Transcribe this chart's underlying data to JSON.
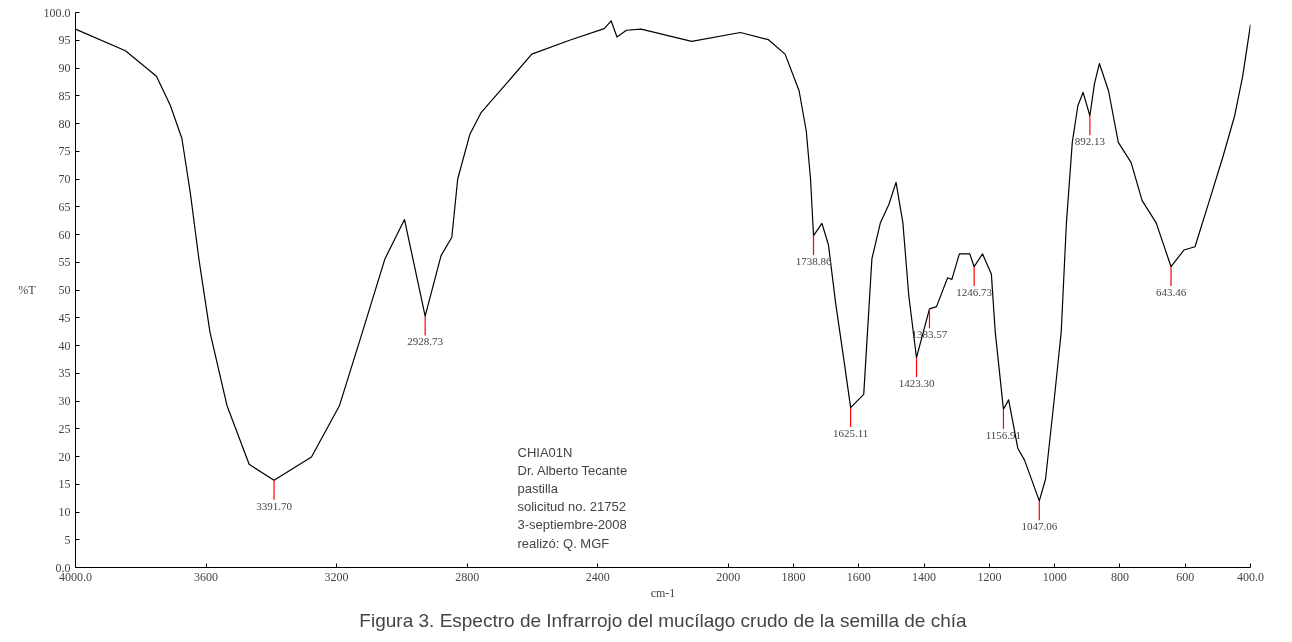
{
  "chart_data": {
    "type": "line",
    "title": "Figura 3. Espectro de Infrarrojo del mucílago crudo de la semilla de chía",
    "xlabel": "cm-1",
    "ylabel": "%T",
    "xlim": [
      4000,
      400
    ],
    "xticks": [
      {
        "value": 4000,
        "label": "4000.0"
      },
      3600,
      3200,
      2800,
      2400,
      2000,
      1800,
      1600,
      1400,
      1200,
      1000,
      800,
      600,
      {
        "value": 400,
        "label": "400.0"
      }
    ],
    "ylim": [
      0,
      100
    ],
    "yticks": [
      {
        "value": 0,
        "label": "0.0"
      },
      5,
      10,
      15,
      20,
      25,
      30,
      35,
      40,
      45,
      50,
      55,
      60,
      65,
      70,
      75,
      80,
      85,
      90,
      95,
      {
        "value": 100,
        "label": "100.0"
      }
    ],
    "grid": false,
    "marker": "none",
    "line_style": "solid",
    "series": [
      {
        "color": "#000000",
        "x": [
          4000,
          3847,
          3752,
          3709,
          3674,
          3648,
          3622,
          3588,
          3536,
          3468,
          3391.7,
          3277,
          3191,
          3121,
          3052,
          2992,
          2928.73,
          2880,
          2847,
          2829,
          2792,
          2758,
          2690,
          2602,
          2482,
          2380,
          2359,
          2341,
          2312,
          2267,
          2112,
          1963,
          1877,
          1826,
          1783,
          1761,
          1748,
          1738.86,
          1713,
          1693,
          1671,
          1645,
          1625.11,
          1585,
          1560,
          1534,
          1508,
          1486,
          1465,
          1447,
          1423.3,
          1383.57,
          1362,
          1328,
          1315,
          1292,
          1276,
          1260,
          1246.73,
          1221,
          1194,
          1182,
          1156.91,
          1141,
          1113,
          1092,
          1047.06,
          1028,
          1001,
          980,
          964,
          946,
          929,
          913,
          892.13,
          878,
          863,
          835,
          805,
          766,
          732,
          689,
          643.46,
          604,
          570,
          526,
          484,
          449,
          424,
          400
        ],
        "values": [
          97.0,
          93.1,
          88.5,
          83.2,
          77.3,
          67.4,
          55.6,
          42.4,
          29.2,
          18.6,
          15.7,
          19.9,
          29.2,
          42.4,
          55.6,
          62.7,
          45.3,
          56.2,
          59.5,
          70.0,
          78.0,
          81.9,
          86.5,
          92.5,
          95.1,
          97.1,
          98.5,
          95.6,
          96.8,
          97.0,
          94.8,
          96.4,
          95.1,
          92.5,
          85.9,
          78.6,
          70.0,
          59.8,
          62.0,
          58.1,
          47.6,
          37.1,
          28.8,
          31.2,
          55.6,
          62.1,
          65.4,
          69.4,
          62.1,
          49.0,
          37.8,
          46.6,
          47.0,
          52.2,
          51.9,
          56.5,
          56.5,
          56.5,
          54.2,
          56.5,
          52.9,
          42.4,
          28.5,
          30.2,
          21.5,
          19.3,
          12.0,
          15.9,
          30.5,
          42.4,
          62.1,
          76.6,
          83.2,
          85.6,
          81.4,
          87.2,
          90.8,
          85.9,
          76.6,
          73.0,
          66.1,
          62.1,
          54.2,
          57.2,
          57.8,
          66.1,
          74.1,
          81.3,
          88.5,
          97.8
        ]
      }
    ],
    "annotations": [
      "CHIA01N",
      "Dr. Alberto Tecante",
      "pastilla",
      "solicitud no. 21752",
      "3-septiembre-2008",
      "realizó: Q. MGF",
      {
        "text": "3391.70",
        "x": 3391.7,
        "y": 15.7
      },
      {
        "text": "2928.73",
        "x": 2928.73,
        "y": 45.3
      },
      {
        "text": "1738.86",
        "x": 1738.86,
        "y": 59.8
      },
      {
        "text": "1625.11",
        "x": 1625.11,
        "y": 28.8
      },
      {
        "text": "1423.30",
        "x": 1423.3,
        "y": 37.8
      },
      {
        "text": "1383.57",
        "x": 1383.57,
        "y": 46.6
      },
      {
        "text": "1246.73",
        "x": 1246.73,
        "y": 54.2
      },
      {
        "text": "1156.91",
        "x": 1156.91,
        "y": 28.5
      },
      {
        "text": "1047.06",
        "x": 1047.06,
        "y": 12.0
      },
      {
        "text": "892.13",
        "x": 892.13,
        "y": 81.4
      },
      {
        "text": "643.46",
        "x": 643.46,
        "y": 54.2
      }
    ]
  }
}
